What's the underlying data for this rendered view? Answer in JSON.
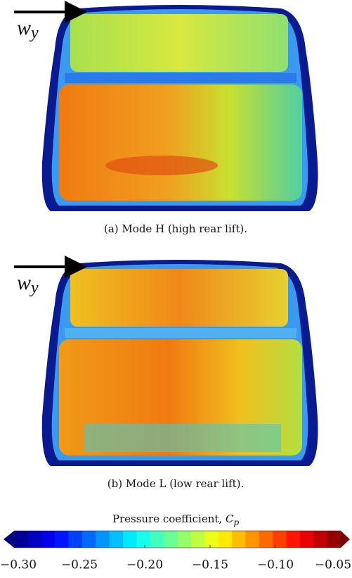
{
  "panels": [
    {
      "caption": "(a) Mode H (high rear lift).",
      "arrow_label": {
        "main": "w",
        "sub": "y"
      }
    },
    {
      "caption": "(b) Mode L (low rear lift).",
      "arrow_label": {
        "main": "w",
        "sub": "y"
      }
    }
  ],
  "colorbar": {
    "label": "Pressure coefficient,",
    "symbol": "C",
    "subscript": "p",
    "colormap": "jet",
    "lim": [
      -0.3,
      -0.05
    ],
    "ticks": [
      {
        "value": -0.3,
        "label": "−0.30"
      },
      {
        "value": -0.25,
        "label": "−0.25"
      },
      {
        "value": -0.2,
        "label": "−0.20"
      },
      {
        "value": -0.15,
        "label": "−0.15"
      },
      {
        "value": -0.1,
        "label": "−0.10"
      },
      {
        "value": -0.05,
        "label": "−0.05"
      }
    ]
  }
}
